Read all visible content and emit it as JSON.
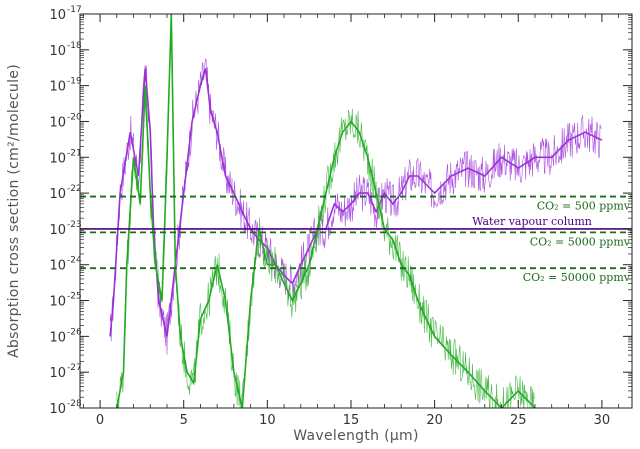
{
  "chart_data": {
    "type": "line",
    "xlabel": "Wavelength (μm)",
    "ylabel": "Absorption cross section (cm²/molecule)",
    "y_scale": "log",
    "xlim": [
      -1.2,
      31.8
    ],
    "ylim": [
      1e-28,
      1e-17
    ],
    "x_ticks": [
      0,
      5,
      10,
      15,
      20,
      25,
      30
    ],
    "y_tick_exponents": [
      -17,
      -18,
      -19,
      -20,
      -21,
      -22,
      -23,
      -24,
      -25,
      -26,
      -27,
      -28
    ],
    "y_tick_base": "10",
    "grid": false,
    "colors": {
      "water": "#9b30d8",
      "co2": "#22aa22",
      "threshold": "#1a6b1a",
      "column": "#4b0082"
    },
    "series": [
      {
        "color_key": "water",
        "x": [
          0.6,
          0.8,
          1.2,
          1.8,
          2.3,
          2.7,
          3.0,
          3.2,
          3.5,
          4.0,
          4.5,
          5.0,
          5.5,
          6.0,
          6.3,
          6.6,
          7.0,
          7.5,
          8.0,
          8.5,
          9.0,
          9.5,
          10.0,
          10.5,
          11.0,
          11.5,
          12.0,
          12.5,
          13.0,
          13.5,
          14.0,
          14.5,
          15.0,
          15.5,
          16.0,
          16.5,
          17.0,
          17.5,
          18.0,
          18.5,
          19.0,
          20.0,
          21.0,
          22.0,
          23.0,
          24.0,
          25.0,
          26.0,
          27.0,
          28.0,
          29.0,
          30.0
        ],
        "y": [
          1e-26,
          1e-25,
          1e-22,
          5e-21,
          3e-22,
          3e-19,
          5e-21,
          1e-23,
          1e-25,
          1e-26,
          1e-24,
          1e-22,
          1e-20,
          1e-19,
          3e-19,
          2e-20,
          5e-21,
          3e-22,
          1e-22,
          3e-23,
          1e-23,
          5e-24,
          3e-24,
          1e-24,
          5e-25,
          3e-25,
          1e-24,
          3e-24,
          1e-23,
          1e-23,
          5e-23,
          3e-23,
          5e-23,
          1e-22,
          1e-22,
          3e-23,
          1e-22,
          5e-23,
          1e-22,
          3e-22,
          3e-22,
          1e-22,
          3e-22,
          5e-22,
          3e-22,
          1e-21,
          5e-22,
          1e-21,
          1e-21,
          3e-21,
          5e-21,
          3e-21
        ]
      },
      {
        "color_key": "co2",
        "x": [
          1.0,
          1.4,
          1.6,
          2.0,
          2.4,
          2.7,
          3.0,
          3.3,
          3.7,
          4.0,
          4.26,
          4.5,
          4.8,
          5.2,
          5.6,
          6.0,
          6.5,
          7.0,
          7.5,
          8.0,
          8.5,
          9.0,
          9.5,
          10.0,
          10.5,
          11.0,
          11.5,
          12.0,
          12.5,
          13.0,
          13.5,
          14.0,
          14.5,
          15.0,
          15.5,
          16.0,
          16.5,
          17.0,
          17.5,
          18.0,
          18.5,
          19.0,
          19.5,
          20.0,
          21.0,
          22.0,
          23.0,
          24.0,
          25.0,
          26.0
        ],
        "y": [
          1e-28,
          1e-27,
          1e-24,
          1e-21,
          5e-23,
          1e-19,
          1e-22,
          1e-24,
          1e-25,
          1e-21,
          1e-17,
          1e-24,
          1e-26,
          1e-27,
          5e-28,
          3e-26,
          1e-25,
          1e-24,
          1e-25,
          1e-27,
          1e-28,
          1e-25,
          1e-23,
          1e-24,
          1e-24,
          3e-25,
          1e-25,
          3e-25,
          1e-24,
          1e-23,
          1e-22,
          1e-21,
          5e-21,
          1e-20,
          5e-21,
          1e-21,
          1e-22,
          1e-23,
          5e-24,
          1e-24,
          5e-25,
          1e-25,
          3e-26,
          1e-26,
          3e-27,
          1e-27,
          3e-28,
          1e-28,
          3e-28,
          1e-28
        ]
      }
    ],
    "horizontal_lines": [
      {
        "y": 8e-23,
        "style": "dashed",
        "color_key": "threshold",
        "label": "CO₂ = 500 ppmv"
      },
      {
        "y": 8e-24,
        "style": "dashed",
        "color_key": "threshold",
        "label": "CO₂ = 5000 ppmv"
      },
      {
        "y": 8e-25,
        "style": "dashed",
        "color_key": "threshold",
        "label": "CO₂ = 50000 ppmv"
      },
      {
        "y": 1e-23,
        "style": "solid",
        "color_key": "column",
        "label": "Water vapour column"
      }
    ]
  }
}
